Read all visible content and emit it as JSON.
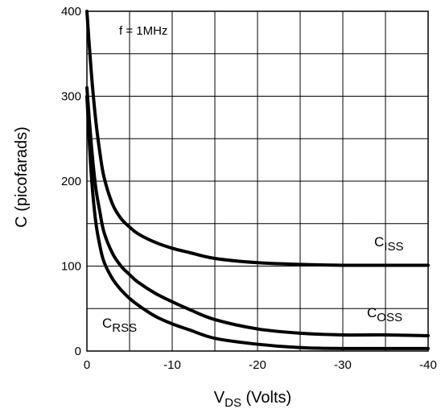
{
  "chart_data": {
    "type": "line",
    "xlabel_main": "V",
    "xlabel_sub": "DS",
    "xlabel_rest": " (Volts)",
    "ylabel": "C (picofarads)",
    "annotation": "f = 1MHz",
    "xlim": [
      0,
      -40
    ],
    "ylim": [
      0,
      400
    ],
    "x_ticks": [
      0,
      -10,
      -20,
      -30,
      -40
    ],
    "x_tick_labels": [
      "0",
      "-10",
      "-20",
      "-30",
      "-40"
    ],
    "y_ticks": [
      0,
      100,
      200,
      300,
      400
    ],
    "y_tick_labels": [
      "0",
      "100",
      "200",
      "300",
      "400"
    ],
    "grid": true,
    "series": [
      {
        "name_main": "C",
        "name_sub": "ISS",
        "x": [
          0,
          -0.5,
          -1,
          -1.5,
          -2,
          -3,
          -4,
          -5,
          -6,
          -8,
          -10,
          -12,
          -15,
          -20,
          -25,
          -30,
          -35,
          -40
        ],
        "y": [
          400,
          330,
          275,
          235,
          205,
          173,
          156,
          146,
          138,
          128,
          121,
          116,
          109,
          104,
          102,
          101,
          101,
          101
        ]
      },
      {
        "name_main": "C",
        "name_sub": "OSS",
        "x": [
          0,
          -0.5,
          -1,
          -1.5,
          -2,
          -3,
          -4,
          -5,
          -6,
          -8,
          -10,
          -12,
          -15,
          -20,
          -25,
          -30,
          -35,
          -40
        ],
        "y": [
          310,
          245,
          195,
          165,
          140,
          115,
          100,
          90,
          81,
          68,
          58,
          49,
          37,
          26,
          21,
          19,
          19,
          18
        ]
      },
      {
        "name_main": "C",
        "name_sub": "RSS",
        "x": [
          0,
          -0.5,
          -1,
          -1.5,
          -2,
          -3,
          -4,
          -5,
          -6,
          -8,
          -10,
          -12,
          -15,
          -20,
          -25,
          -30,
          -35,
          -40
        ],
        "y": [
          300,
          210,
          155,
          125,
          105,
          85,
          72,
          62,
          54,
          41,
          32,
          25,
          15,
          8,
          4,
          3,
          3,
          3
        ]
      }
    ]
  }
}
